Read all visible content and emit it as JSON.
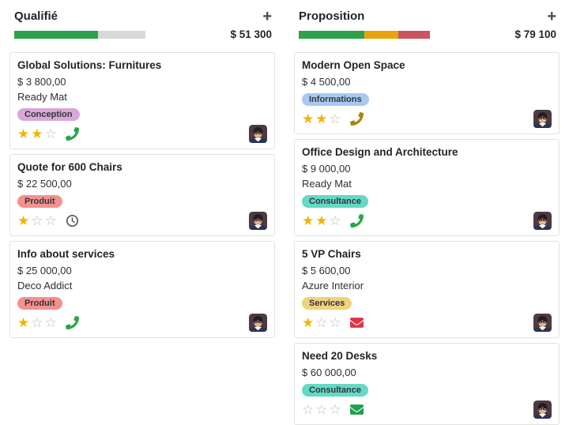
{
  "colors": {
    "success_green": "#28a745",
    "bar_green": "#2ea14d",
    "bar_orange": "#e8a40b",
    "bar_red": "#cb5462",
    "bar_track_gray": "#d9d9d9",
    "star_gold": "#f1b500",
    "danger_red": "#dc3545",
    "today_yellow": "#a8860b",
    "clock_gray": "#5a5a5a"
  },
  "icons": {
    "add_column": {
      "name": "plus-icon",
      "glyph": "+"
    },
    "star_filled_glyph": "★",
    "star_empty_glyph": "☆",
    "activity_types": [
      "phone-icon",
      "clock-icon",
      "envelope-icon"
    ],
    "assignee": "user-avatar"
  },
  "board": {
    "columns": [
      {
        "title": "Qualifié",
        "total": "$ 51 300",
        "progress": [
          {
            "label": "success",
            "color": "#2ea14d",
            "pct": 64
          }
        ],
        "cards": [
          {
            "title": "Global Solutions: Furnitures",
            "amount": "$ 3 800,00",
            "partner": "Ready Mat",
            "tag": {
              "label": "Conception",
              "bg": "#d9a7d9"
            },
            "stars": 2,
            "activity": {
              "type": "phone",
              "color": "#28a745"
            }
          },
          {
            "title": "Quote for 600 Chairs",
            "amount": "$ 22 500,00",
            "partner": null,
            "tag": {
              "label": "Produit",
              "bg": "#f4918e"
            },
            "stars": 1,
            "activity": {
              "type": "clock",
              "color": "#5a5a5a"
            }
          },
          {
            "title": "Info about services",
            "amount": "$ 25 000,00",
            "partner": "Deco Addict",
            "tag": {
              "label": "Produit",
              "bg": "#f4918e"
            },
            "stars": 1,
            "activity": {
              "type": "phone",
              "color": "#28a745"
            }
          }
        ]
      },
      {
        "title": "Proposition",
        "total": "$ 79 100",
        "progress": [
          {
            "label": "success",
            "color": "#2ea14d",
            "pct": 50
          },
          {
            "label": "warning",
            "color": "#e8a40b",
            "pct": 26
          },
          {
            "label": "danger",
            "color": "#cb5462",
            "pct": 24
          }
        ],
        "cards": [
          {
            "title": "Modern Open Space",
            "amount": "$ 4 500,00",
            "partner": null,
            "tag": {
              "label": "Informations",
              "bg": "#a9c8f2"
            },
            "stars": 2,
            "activity": {
              "type": "phone",
              "color": "#a8860b"
            }
          },
          {
            "title": "Office Design and Architecture",
            "amount": "$ 9 000,00",
            "partner": "Ready Mat",
            "tag": {
              "label": "Consultance",
              "bg": "#64d9c4"
            },
            "stars": 2,
            "activity": {
              "type": "phone",
              "color": "#28a745"
            }
          },
          {
            "title": "5 VP Chairs",
            "amount": "$ 5 600,00",
            "partner": "Azure Interior",
            "tag": {
              "label": "Services",
              "bg": "#efd27d"
            },
            "stars": 1,
            "activity": {
              "type": "envelope",
              "color": "#dc3545"
            }
          },
          {
            "title": "Need 20 Desks",
            "amount": "$ 60 000,00",
            "partner": null,
            "tag": {
              "label": "Consultance",
              "bg": "#64d9c4"
            },
            "stars": 0,
            "activity": {
              "type": "envelope",
              "color": "#21a04a"
            }
          }
        ]
      }
    ]
  }
}
